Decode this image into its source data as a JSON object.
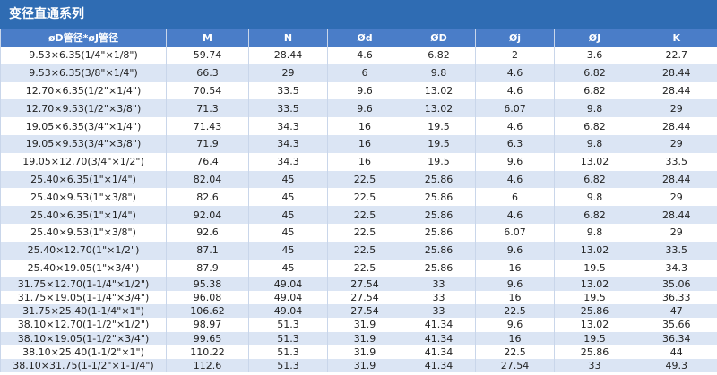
{
  "header": {
    "title": "变径直通系列"
  },
  "table": {
    "columns": [
      "øD管径*øJ管径",
      "M",
      "N",
      "Ød",
      "ØD",
      "Øj",
      "ØJ",
      "K"
    ],
    "rows": [
      [
        "9.53×6.35(1/4\"×1/8\")",
        "59.74",
        "28.44",
        "4.6",
        "6.82",
        "2",
        "3.6",
        "22.7"
      ],
      [
        "9.53×6.35(3/8\"×1/4\")",
        "66.3",
        "29",
        "6",
        "9.8",
        "4.6",
        "6.82",
        "28.44"
      ],
      [
        "12.70×6.35(1/2\"×1/4\")",
        "70.54",
        "33.5",
        "9.6",
        "13.02",
        "4.6",
        "6.82",
        "28.44"
      ],
      [
        "12.70×9.53(1/2\"×3/8\")",
        "71.3",
        "33.5",
        "9.6",
        "13.02",
        "6.07",
        "9.8",
        "29"
      ],
      [
        "19.05×6.35(3/4\"×1/4\")",
        "71.43",
        "34.3",
        "16",
        "19.5",
        "4.6",
        "6.82",
        "28.44"
      ],
      [
        "19.05×9.53(3/4\"×3/8\")",
        "71.9",
        "34.3",
        "16",
        "19.5",
        "6.3",
        "9.8",
        "29"
      ],
      [
        "19.05×12.70(3/4\"×1/2\")",
        "76.4",
        "34.3",
        "16",
        "19.5",
        "9.6",
        "13.02",
        "33.5"
      ],
      [
        "25.40×6.35(1\"×1/4\")",
        "82.04",
        "45",
        "22.5",
        "25.86",
        "4.6",
        "6.82",
        "28.44"
      ],
      [
        "25.40×9.53(1\"×3/8\")",
        "82.6",
        "45",
        "22.5",
        "25.86",
        "6",
        "9.8",
        "29"
      ],
      [
        "25.40×6.35(1\"×1/4\")",
        "92.04",
        "45",
        "22.5",
        "25.86",
        "4.6",
        "6.82",
        "28.44"
      ],
      [
        "25.40×9.53(1\"×3/8\")",
        "92.6",
        "45",
        "22.5",
        "25.86",
        "6.07",
        "9.8",
        "29"
      ],
      [
        "25.40×12.70(1\"×1/2\")",
        "87.1",
        "45",
        "22.5",
        "25.86",
        "9.6",
        "13.02",
        "33.5"
      ],
      [
        "25.40×19.05(1\"×3/4\")",
        "87.9",
        "45",
        "22.5",
        "25.86",
        "16",
        "19.5",
        "34.3"
      ],
      [
        "31.75×12.70(1-1/4\"×1/2\")",
        "95.38",
        "49.04",
        "27.54",
        "33",
        "9.6",
        "13.02",
        "35.06"
      ],
      [
        "31.75×19.05(1-1/4\"×3/4\")",
        "96.08",
        "49.04",
        "27.54",
        "33",
        "16",
        "19.5",
        "36.33"
      ],
      [
        "31.75×25.40(1-1/4\"×1\")",
        "106.62",
        "49.04",
        "27.54",
        "33",
        "22.5",
        "25.86",
        "47"
      ],
      [
        "38.10×12.70(1-1/2\"×1/2\")",
        "98.97",
        "51.3",
        "31.9",
        "41.34",
        "9.6",
        "13.02",
        "35.66"
      ],
      [
        "38.10×19.05(1-1/2\"×3/4\")",
        "99.65",
        "51.3",
        "31.9",
        "41.34",
        "16",
        "19.5",
        "36.34"
      ],
      [
        "38.10×25.40(1-1/2\"×1\")",
        "110.22",
        "51.3",
        "31.9",
        "41.34",
        "22.5",
        "25.86",
        "44"
      ],
      [
        "38.10×31.75(1-1/2\"×1-1/4\")",
        "112.6",
        "51.3",
        "31.9",
        "41.34",
        "27.54",
        "33",
        "49.3"
      ]
    ]
  }
}
